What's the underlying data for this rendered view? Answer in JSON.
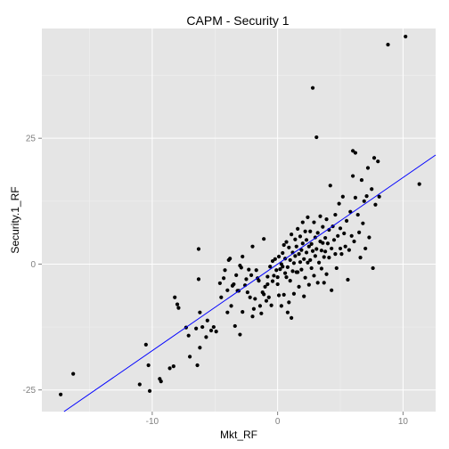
{
  "chart_data": {
    "type": "scatter",
    "title": "CAPM - Security 1",
    "xlabel": "Mkt_RF",
    "ylabel": "Security.1_RF",
    "xlim": [
      -18.8,
      12.6
    ],
    "ylim": [
      -29.3,
      46.8
    ],
    "x_ticks": [
      {
        "value": -10,
        "label": "-10"
      },
      {
        "value": 0,
        "label": "0"
      },
      {
        "value": 10,
        "label": "10"
      }
    ],
    "y_ticks": [
      {
        "value": -25,
        "label": "-25"
      },
      {
        "value": 0,
        "label": "0"
      },
      {
        "value": 25,
        "label": "25"
      }
    ],
    "grid": true,
    "regression_line": {
      "color": "#0000ff",
      "intercept": 0.0,
      "slope": 1.72
    },
    "point_color": "#000000",
    "panel_color": "#e5e5e5",
    "grid_color": "#ffffff",
    "points": [
      [
        -17.3,
        -25.9
      ],
      [
        -16.3,
        -21.8
      ],
      [
        -11.0,
        -23.9
      ],
      [
        -10.5,
        -16.0
      ],
      [
        -10.3,
        -20.1
      ],
      [
        -10.2,
        -25.2
      ],
      [
        -9.4,
        -22.8
      ],
      [
        -9.3,
        -23.3
      ],
      [
        -8.6,
        -20.7
      ],
      [
        -8.3,
        -20.3
      ],
      [
        -8.2,
        -6.6
      ],
      [
        -8.0,
        -8.0
      ],
      [
        -7.9,
        -8.7
      ],
      [
        -7.3,
        -12.6
      ],
      [
        -7.1,
        -14.2
      ],
      [
        -7.0,
        -18.4
      ],
      [
        -6.5,
        -12.8
      ],
      [
        -6.4,
        -20.1
      ],
      [
        -6.3,
        -3.0
      ],
      [
        -6.3,
        3.0
      ],
      [
        -6.2,
        -16.6
      ],
      [
        -6.2,
        -9.6
      ],
      [
        -6.0,
        -12.5
      ],
      [
        -5.7,
        -14.5
      ],
      [
        -5.6,
        -11.2
      ],
      [
        -5.3,
        -13.2
      ],
      [
        -5.1,
        -12.5
      ],
      [
        -4.9,
        -13.4
      ],
      [
        -4.6,
        -3.8
      ],
      [
        -4.5,
        -6.6
      ],
      [
        -4.3,
        -2.8
      ],
      [
        -4.2,
        -1.2
      ],
      [
        -4.0,
        -9.6
      ],
      [
        -4.0,
        -5.2
      ],
      [
        -3.9,
        0.8
      ],
      [
        -3.8,
        1.1
      ],
      [
        -3.7,
        -8.3
      ],
      [
        -3.6,
        -4.3
      ],
      [
        -3.5,
        -4.0
      ],
      [
        -3.4,
        -12.3
      ],
      [
        -3.3,
        -2.2
      ],
      [
        -3.2,
        -5.3
      ],
      [
        -3.1,
        -5.3
      ],
      [
        -3.0,
        -14.0
      ],
      [
        -3.0,
        -0.3
      ],
      [
        -2.9,
        -0.7
      ],
      [
        -2.8,
        -9.5
      ],
      [
        -2.8,
        1.5
      ],
      [
        -2.6,
        -4.2
      ],
      [
        -2.5,
        -3.0
      ],
      [
        -2.4,
        -5.6
      ],
      [
        -2.3,
        -1.1
      ],
      [
        -2.2,
        -6.6
      ],
      [
        -2.1,
        -2.2
      ],
      [
        -2.0,
        -10.4
      ],
      [
        -2.0,
        3.5
      ],
      [
        -1.9,
        -8.9
      ],
      [
        -1.8,
        -6.9
      ],
      [
        -1.7,
        -1.2
      ],
      [
        -1.6,
        -2.8
      ],
      [
        -1.5,
        -3.3
      ],
      [
        -1.4,
        -8.3
      ],
      [
        -1.3,
        -9.8
      ],
      [
        -1.2,
        -5.6
      ],
      [
        -1.1,
        -6.0
      ],
      [
        -1.1,
        5.0
      ],
      [
        -1.0,
        -4.5
      ],
      [
        -0.9,
        -7.3
      ],
      [
        -0.8,
        -4.0
      ],
      [
        -0.8,
        -2.5
      ],
      [
        -0.7,
        -6.6
      ],
      [
        -0.6,
        -0.5
      ],
      [
        -0.5,
        -8.2
      ],
      [
        -0.4,
        -3.4
      ],
      [
        -0.4,
        0.6
      ],
      [
        -0.3,
        -2.3
      ],
      [
        -0.2,
        1.0
      ],
      [
        -0.1,
        -1.2
      ],
      [
        0.0,
        -4.0
      ],
      [
        0.0,
        -2.6
      ],
      [
        0.1,
        -6.2
      ],
      [
        0.1,
        1.5
      ],
      [
        0.2,
        -1.0
      ],
      [
        0.3,
        -8.3
      ],
      [
        0.3,
        0.0
      ],
      [
        0.4,
        -0.5
      ],
      [
        0.4,
        2.2
      ],
      [
        0.5,
        -6.1
      ],
      [
        0.5,
        3.8
      ],
      [
        0.6,
        -1.8
      ],
      [
        0.6,
        1.1
      ],
      [
        0.7,
        -2.6
      ],
      [
        0.7,
        4.4
      ],
      [
        0.8,
        -9.6
      ],
      [
        0.8,
        -0.6
      ],
      [
        0.9,
        -7.6
      ],
      [
        0.9,
        3.3
      ],
      [
        1.0,
        0.8
      ],
      [
        1.0,
        -3.3
      ],
      [
        1.1,
        -10.7
      ],
      [
        1.1,
        5.9
      ],
      [
        1.2,
        -1.4
      ],
      [
        1.2,
        2.3
      ],
      [
        1.3,
        0.2
      ],
      [
        1.3,
        -5.9
      ],
      [
        1.4,
        1.6
      ],
      [
        1.4,
        4.9
      ],
      [
        1.5,
        -1.6
      ],
      [
        1.5,
        3.5
      ],
      [
        1.6,
        -1.6
      ],
      [
        1.6,
        7.0
      ],
      [
        1.7,
        2.0
      ],
      [
        1.7,
        -4.5
      ],
      [
        1.8,
        0.4
      ],
      [
        1.8,
        5.5
      ],
      [
        1.9,
        -1.1
      ],
      [
        1.9,
        2.8
      ],
      [
        2.0,
        8.3
      ],
      [
        2.0,
        4.1
      ],
      [
        2.1,
        -6.4
      ],
      [
        2.1,
        1.0
      ],
      [
        2.2,
        6.5
      ],
      [
        2.2,
        -2.7
      ],
      [
        2.3,
        2.3
      ],
      [
        2.3,
        4.8
      ],
      [
        2.4,
        0.3
      ],
      [
        2.4,
        9.3
      ],
      [
        2.5,
        -4.1
      ],
      [
        2.5,
        3.5
      ],
      [
        2.6,
        0.8
      ],
      [
        2.6,
        6.5
      ],
      [
        2.7,
        -0.8
      ],
      [
        2.7,
        4.0
      ],
      [
        2.8,
        2.6
      ],
      [
        2.8,
        35.0
      ],
      [
        2.9,
        8.3
      ],
      [
        2.9,
        -2.3
      ],
      [
        3.0,
        5.3
      ],
      [
        3.0,
        1.6
      ],
      [
        3.1,
        25.2
      ],
      [
        3.1,
        3.0
      ],
      [
        3.2,
        -3.7
      ],
      [
        3.2,
        6.2
      ],
      [
        3.3,
        0.3
      ],
      [
        3.4,
        4.5
      ],
      [
        3.4,
        9.5
      ],
      [
        3.5,
        2.7
      ],
      [
        3.5,
        -0.9
      ],
      [
        3.6,
        7.4
      ],
      [
        3.6,
        4.2
      ],
      [
        3.7,
        1.4
      ],
      [
        3.7,
        -3.7
      ],
      [
        3.8,
        5.2
      ],
      [
        3.8,
        2.5
      ],
      [
        3.9,
        8.9
      ],
      [
        3.9,
        -2.0
      ],
      [
        4.0,
        4.1
      ],
      [
        4.1,
        1.3
      ],
      [
        4.1,
        6.8
      ],
      [
        4.2,
        15.6
      ],
      [
        4.3,
        3.1
      ],
      [
        4.3,
        -5.2
      ],
      [
        4.4,
        7.5
      ],
      [
        4.5,
        4.8
      ],
      [
        4.6,
        2.0
      ],
      [
        4.6,
        9.8
      ],
      [
        4.7,
        -0.8
      ],
      [
        4.8,
        5.6
      ],
      [
        4.9,
        12.0
      ],
      [
        5.0,
        3.1
      ],
      [
        5.0,
        7.1
      ],
      [
        5.1,
        2.0
      ],
      [
        5.2,
        13.4
      ],
      [
        5.3,
        6.1
      ],
      [
        5.4,
        3.5
      ],
      [
        5.5,
        8.6
      ],
      [
        5.6,
        -3.1
      ],
      [
        5.7,
        2.8
      ],
      [
        5.8,
        10.4
      ],
      [
        5.9,
        5.6
      ],
      [
        6.0,
        22.5
      ],
      [
        6.0,
        17.5
      ],
      [
        6.1,
        4.5
      ],
      [
        6.2,
        13.2
      ],
      [
        6.2,
        22.1
      ],
      [
        6.4,
        9.8
      ],
      [
        6.5,
        6.3
      ],
      [
        6.6,
        1.3
      ],
      [
        6.7,
        16.7
      ],
      [
        6.8,
        8.1
      ],
      [
        6.9,
        12.5
      ],
      [
        7.0,
        3.1
      ],
      [
        7.1,
        13.5
      ],
      [
        7.2,
        19.1
      ],
      [
        7.3,
        5.3
      ],
      [
        7.5,
        14.9
      ],
      [
        7.6,
        -0.8
      ],
      [
        7.7,
        21.1
      ],
      [
        7.8,
        11.8
      ],
      [
        8.0,
        20.4
      ],
      [
        8.1,
        13.4
      ],
      [
        8.8,
        43.6
      ],
      [
        10.2,
        45.2
      ],
      [
        11.3,
        15.9
      ]
    ]
  }
}
